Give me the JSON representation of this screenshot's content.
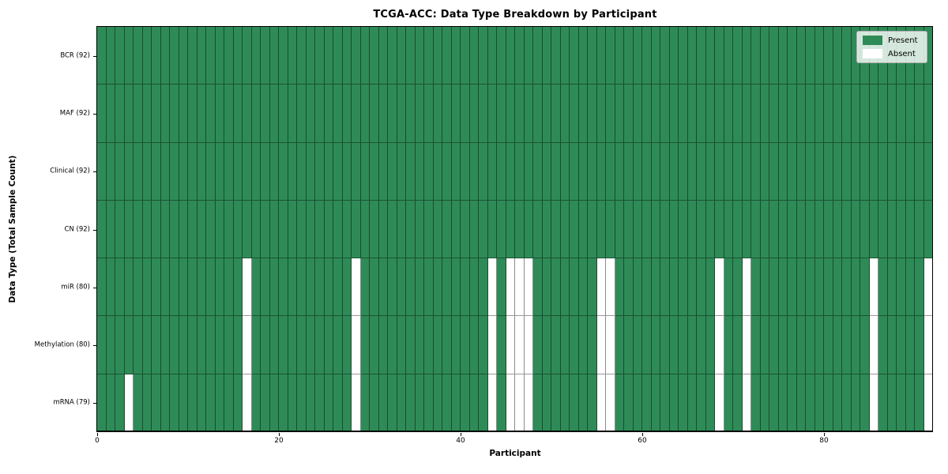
{
  "chart_data": {
    "type": "heatmap",
    "title": "TCGA-ACC: Data Type Breakdown by Participant",
    "xlabel": "Participant",
    "ylabel": "Data Type (Total Sample Count)",
    "n_participants": 92,
    "x_ticks": [
      0,
      20,
      40,
      60,
      80
    ],
    "grid": true,
    "legend_position": "upper right",
    "colors": {
      "present": "#2e8b57",
      "absent": "#ffffff"
    },
    "legend": [
      {
        "label": "Present",
        "color": "#2e8b57"
      },
      {
        "label": "Absent",
        "color": "#ffffff"
      }
    ],
    "rows": [
      {
        "key": "bcr",
        "label": "BCR (92)",
        "present_count": 92,
        "absent_columns": []
      },
      {
        "key": "maf",
        "label": "MAF (92)",
        "present_count": 92,
        "absent_columns": []
      },
      {
        "key": "clinical",
        "label": "Clinical (92)",
        "present_count": 92,
        "absent_columns": []
      },
      {
        "key": "cn",
        "label": "CN (92)",
        "present_count": 92,
        "absent_columns": []
      },
      {
        "key": "mir",
        "label": "miR (80)",
        "present_count": 80,
        "absent_columns": [
          16,
          28,
          43,
          45,
          46,
          47,
          55,
          56,
          68,
          71,
          85,
          91
        ]
      },
      {
        "key": "methylation",
        "label": "Methylation (80)",
        "present_count": 80,
        "absent_columns": [
          16,
          28,
          43,
          45,
          46,
          47,
          55,
          56,
          68,
          71,
          85,
          91
        ]
      },
      {
        "key": "mrna",
        "label": "mRNA (79)",
        "present_count": 79,
        "absent_columns": [
          3,
          16,
          28,
          43,
          45,
          46,
          47,
          55,
          56,
          68,
          71,
          85,
          91
        ]
      }
    ]
  }
}
